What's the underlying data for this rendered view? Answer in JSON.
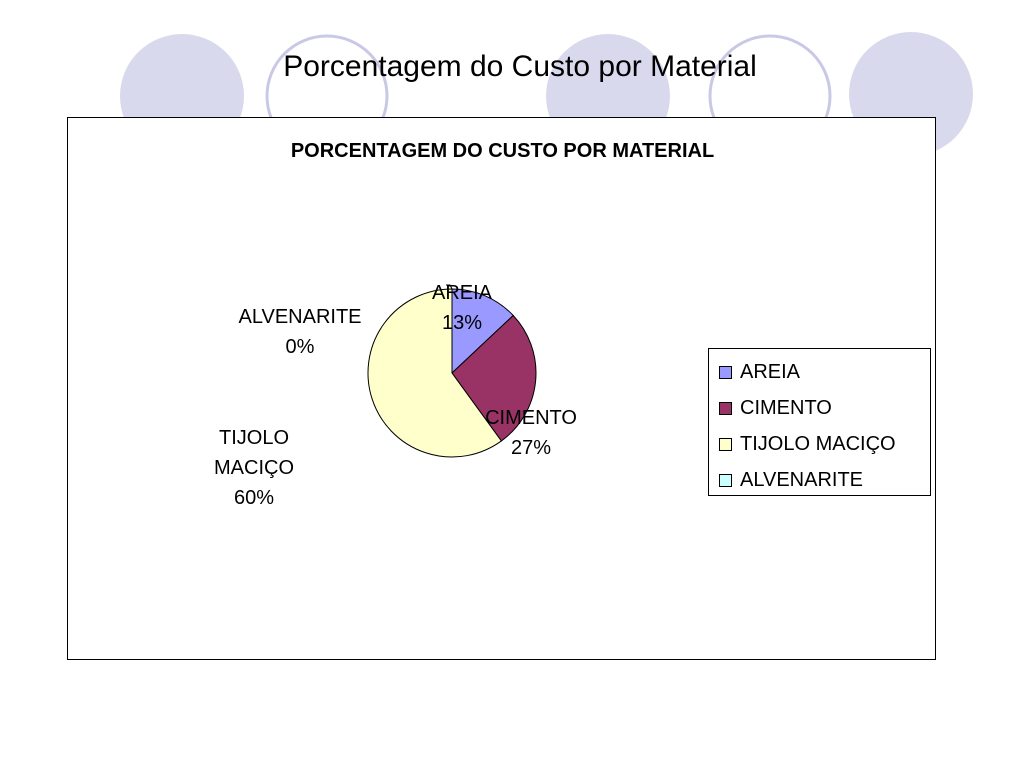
{
  "slide": {
    "title": "Porcentagem do Custo por Material"
  },
  "decoration": {
    "circle_fill": "#d9d9ee",
    "circle_stroke": "#c9c9e6"
  },
  "chart_data": {
    "type": "pie",
    "title": "PORCENTAGEM DO CUSTO POR MATERIAL",
    "categories": [
      "AREIA",
      "CIMENTO",
      "TIJOLO MACIÇO",
      "ALVENARITE"
    ],
    "values": [
      13,
      27,
      60,
      0
    ],
    "data_labels": [
      {
        "name_lines": [
          "AREIA"
        ],
        "percent": "13%"
      },
      {
        "name_lines": [
          "CIMENTO"
        ],
        "percent": "27%"
      },
      {
        "name_lines": [
          "TIJOLO",
          "MACIÇO"
        ],
        "percent": "60%"
      },
      {
        "name_lines": [
          "ALVENARITE"
        ],
        "percent": "0%"
      }
    ],
    "colors": [
      "#9999ff",
      "#993366",
      "#ffffcc",
      "#ccffff"
    ],
    "legend": {
      "placement": "right",
      "entries": [
        "AREIA",
        "CIMENTO",
        "TIJOLO MACIÇO",
        "ALVENARITE"
      ]
    }
  }
}
